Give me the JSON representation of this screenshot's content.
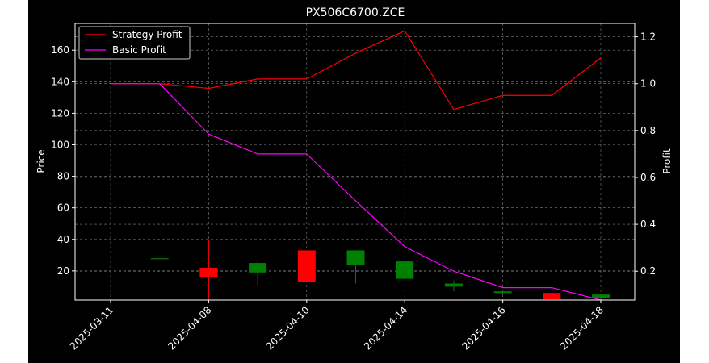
{
  "chart_data": {
    "type": "candlestick+line",
    "title": "PX506C6700.ZCE",
    "xlabel": "",
    "ylabel": "Price",
    "y2label": "Profit",
    "ylim": [
      1.5,
      177
    ],
    "y2lim": [
      0.077,
      1.257
    ],
    "grid": true,
    "legend_position": "top-left",
    "x_tick_labels": [
      "2025-03-11",
      "2025-04-08",
      "2025-04-10",
      "2025-04-14",
      "2025-04-16",
      "2025-04-18"
    ],
    "y_ticks": [
      20,
      40,
      60,
      80,
      100,
      120,
      140,
      160
    ],
    "y2_ticks": [
      0.2,
      0.4,
      0.6,
      0.8,
      1.0,
      1.2
    ],
    "candles": [
      {
        "open": 28,
        "high": 28,
        "low": 28,
        "close": 28
      },
      {
        "open": 22,
        "high": 40,
        "low": 1.5,
        "close": 16
      },
      {
        "open": 19,
        "high": 26,
        "low": 11,
        "close": 25
      },
      {
        "open": 33,
        "high": 33,
        "low": 13,
        "close": 13
      },
      {
        "open": 24,
        "high": 33,
        "low": 12,
        "close": 33
      },
      {
        "open": 15,
        "high": 26,
        "low": 14,
        "close": 26
      },
      {
        "open": 10,
        "high": 14,
        "low": 7,
        "close": 12
      },
      {
        "open": 6,
        "high": 7,
        "low": 5,
        "close": 7
      },
      {
        "open": 6,
        "high": 6,
        "low": 2,
        "close": 2
      },
      {
        "open": 3,
        "high": 5,
        "low": 2,
        "close": 5
      }
    ],
    "series": [
      {
        "name": "Strategy Profit",
        "color": "#ff0000",
        "values": [
          1.0,
          1.0,
          0.98,
          1.02,
          1.02,
          1.13,
          1.225,
          0.89,
          0.95,
          0.95,
          1.11
        ]
      },
      {
        "name": "Basic Profit",
        "color": "#ff00ff",
        "values": [
          1.0,
          1.0,
          0.785,
          0.7,
          0.7,
          0.5,
          0.305,
          0.2,
          0.13,
          0.13,
          0.077
        ]
      }
    ],
    "colors": {
      "up": "#008000",
      "down": "#ff0000",
      "background": "#000000",
      "axes": "#ffffff",
      "grid": "#808080"
    }
  }
}
